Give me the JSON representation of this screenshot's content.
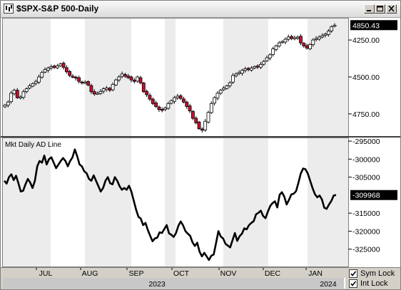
{
  "window": {
    "title": "$SPX-S&P 500-Daily",
    "buttons": [
      "minimize",
      "maximize",
      "close"
    ]
  },
  "colors": {
    "up_candle_fill": "#ffffff",
    "down_candle_fill": "#c8102e",
    "candle_outline": "#000000",
    "ad_line": "#000000",
    "shaded_background": "#ececec",
    "last_value_box": "#000000"
  },
  "upper_pane": {
    "y_ticks": [
      "4750.00",
      "4500.00",
      "4250.00"
    ],
    "last_value_label": "4850.43"
  },
  "lower_pane": {
    "title": "Mkt Daily AD Line",
    "y_ticks": [
      "-295000",
      "-300000",
      "-305000",
      "-315000",
      "-320000",
      "-325000"
    ],
    "last_value_label": "-309968"
  },
  "x_axis": {
    "months": [
      "JUL",
      "AUG",
      "SEP",
      "OCT",
      "NOV",
      "DEC",
      "JAN"
    ],
    "years": [
      "2023",
      "2024"
    ]
  },
  "checkboxes": [
    {
      "label": "Sym Lock",
      "checked": true
    },
    {
      "label": "Int Lock",
      "checked": true
    }
  ],
  "chart_data": [
    {
      "type": "candlestick",
      "title": "$SPX-S&P 500-Daily",
      "ylim": [
        4100,
        4900
      ],
      "y_ticks": [
        4250,
        4500,
        4750
      ],
      "last_value": 4850.43,
      "x_labels": [
        "JUL",
        "AUG",
        "SEP",
        "OCT",
        "NOV",
        "DEC",
        "JAN"
      ],
      "approx_closes": [
        4310,
        4330,
        4390,
        4410,
        4360,
        4365,
        4400,
        4420,
        4440,
        4455,
        4470,
        4500,
        4530,
        4550,
        4560,
        4570,
        4565,
        4575,
        4588,
        4565,
        4535,
        4510,
        4500,
        4492,
        4470,
        4460,
        4465,
        4445,
        4400,
        4385,
        4390,
        4402,
        4420,
        4425,
        4410,
        4450,
        4480,
        4500,
        4520,
        4505,
        4495,
        4480,
        4470,
        4500,
        4460,
        4400,
        4380,
        4350,
        4320,
        4300,
        4280,
        4275,
        4290,
        4320,
        4340,
        4360,
        4370,
        4355,
        4330,
        4300,
        4270,
        4220,
        4190,
        4150,
        4140,
        4200,
        4260,
        4320,
        4360,
        4390,
        4410,
        4425,
        4440,
        4460,
        4510,
        4520,
        4530,
        4545,
        4555,
        4550,
        4560,
        4570,
        4569,
        4585,
        4605,
        4630,
        4650,
        4690,
        4710,
        4730,
        4740,
        4755,
        4770,
        4760,
        4765,
        4770,
        4730,
        4710,
        4695,
        4720,
        4750,
        4760,
        4770,
        4780,
        4790,
        4810,
        4840,
        4850
      ]
    },
    {
      "type": "line",
      "title": "Mkt Daily AD Line",
      "ylim": [
        -330000,
        -294000
      ],
      "y_ticks": [
        -295000,
        -300000,
        -305000,
        -315000,
        -320000,
        -325000
      ],
      "last_value": -309968,
      "x_labels": [
        "JUL",
        "AUG",
        "SEP",
        "OCT",
        "NOV",
        "DEC",
        "JAN"
      ],
      "values": [
        -306000,
        -306800,
        -305000,
        -304200,
        -305800,
        -304600,
        -306700,
        -309000,
        -308800,
        -307000,
        -305500,
        -306500,
        -308000,
        -306000,
        -302000,
        -300500,
        -301000,
        -299000,
        -301500,
        -300000,
        -299500,
        -301000,
        -302500,
        -301500,
        -300500,
        -299700,
        -300500,
        -302000,
        -300500,
        -299500,
        -297300,
        -299200,
        -301500,
        -302000,
        -303400,
        -303900,
        -305500,
        -306000,
        -304500,
        -306000,
        -307500,
        -309000,
        -308000,
        -306000,
        -305000,
        -306700,
        -307000,
        -305000,
        -306000,
        -307500,
        -308500,
        -308000,
        -308500,
        -307400,
        -309000,
        -311500,
        -314000,
        -316000,
        -316500,
        -318300,
        -317700,
        -319700,
        -321300,
        -322800,
        -322000,
        -321800,
        -320300,
        -320500,
        -319400,
        -318300,
        -320600,
        -321000,
        -321600,
        -320500,
        -318500,
        -317300,
        -318400,
        -320000,
        -320700,
        -321300,
        -323100,
        -324100,
        -323200,
        -325700,
        -327000,
        -326000,
        -327000,
        -328000,
        -326800,
        -326500,
        -323300,
        -320000,
        -321500,
        -322000,
        -323500,
        -324000,
        -324500,
        -322500,
        -320500,
        -322700,
        -321400,
        -320700,
        -319200,
        -319500,
        -318300,
        -317700,
        -317200,
        -315300,
        -314900,
        -314300,
        -315800,
        -316400,
        -314600,
        -313000,
        -312200,
        -311700,
        -313400,
        -309900,
        -309200,
        -310400,
        -312600,
        -311300,
        -309800,
        -309600,
        -308900,
        -306600,
        -304000,
        -302600,
        -302800,
        -304000,
        -306000,
        -308000,
        -309700,
        -310600,
        -310100,
        -311200,
        -313500,
        -313800,
        -312600,
        -311600,
        -310100,
        -309968
      ]
    }
  ]
}
